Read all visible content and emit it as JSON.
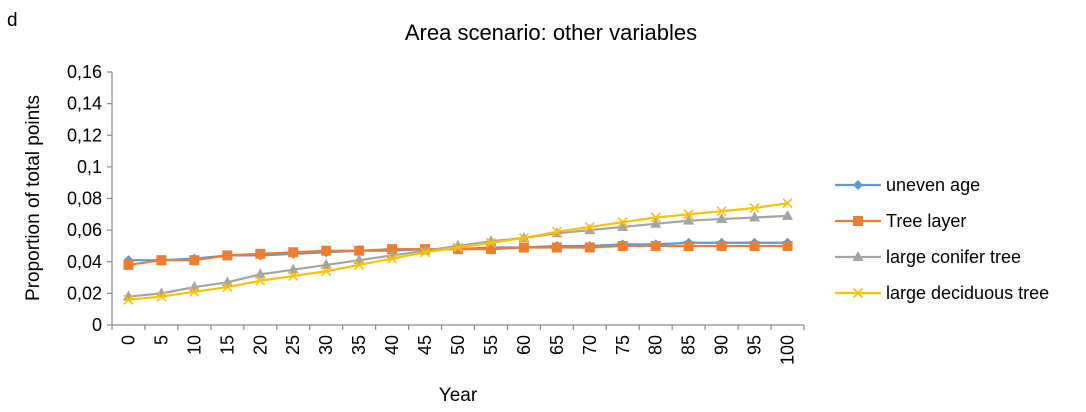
{
  "panel_label": "d",
  "chart_data": {
    "type": "line",
    "title": "Area scenario: other variables",
    "xlabel": "Year",
    "ylabel": "Proportion of total points",
    "x": [
      0,
      5,
      10,
      15,
      20,
      25,
      30,
      35,
      40,
      45,
      50,
      55,
      60,
      65,
      70,
      75,
      80,
      85,
      90,
      95,
      100
    ],
    "x_tick_labels": [
      "0",
      "5",
      "10",
      "15",
      "20",
      "25",
      "30",
      "35",
      "40",
      "45",
      "50",
      "55",
      "60",
      "65",
      "70",
      "75",
      "80",
      "85",
      "90",
      "95",
      "100"
    ],
    "ylim": [
      0,
      0.16
    ],
    "y_ticks": [
      0,
      0.02,
      0.04,
      0.06,
      0.08,
      0.1,
      0.12,
      0.14,
      0.16
    ],
    "y_tick_labels": [
      "0",
      "0,02",
      "0,04",
      "0,06",
      "0,08",
      "0,1",
      "0,12",
      "0,14",
      "0,16"
    ],
    "grid": false,
    "legend_position": "right",
    "series": [
      {
        "name": "uneven age",
        "color": "#5B9BD5",
        "marker": "diamond",
        "values": [
          0.041,
          0.041,
          0.042,
          0.044,
          0.044,
          0.045,
          0.046,
          0.047,
          0.047,
          0.048,
          0.048,
          0.049,
          0.049,
          0.05,
          0.05,
          0.051,
          0.051,
          0.052,
          0.052,
          0.052,
          0.052
        ]
      },
      {
        "name": "Tree layer",
        "color": "#ED7D31",
        "marker": "square",
        "values": [
          0.038,
          0.041,
          0.041,
          0.044,
          0.045,
          0.046,
          0.047,
          0.047,
          0.048,
          0.048,
          0.048,
          0.048,
          0.049,
          0.049,
          0.049,
          0.05,
          0.05,
          0.05,
          0.05,
          0.05,
          0.05
        ]
      },
      {
        "name": "large conifer tree",
        "color": "#A5A5A5",
        "marker": "triangle",
        "values": [
          0.018,
          0.02,
          0.024,
          0.027,
          0.032,
          0.035,
          0.038,
          0.041,
          0.044,
          0.047,
          0.05,
          0.053,
          0.055,
          0.058,
          0.06,
          0.062,
          0.064,
          0.066,
          0.067,
          0.068,
          0.069
        ]
      },
      {
        "name": "large deciduous tree",
        "color": "#FFC000",
        "marker": "x",
        "values": [
          0.016,
          0.018,
          0.021,
          0.024,
          0.028,
          0.031,
          0.034,
          0.038,
          0.042,
          0.046,
          0.049,
          0.052,
          0.055,
          0.059,
          0.062,
          0.065,
          0.068,
          0.07,
          0.072,
          0.074,
          0.077
        ]
      }
    ]
  }
}
